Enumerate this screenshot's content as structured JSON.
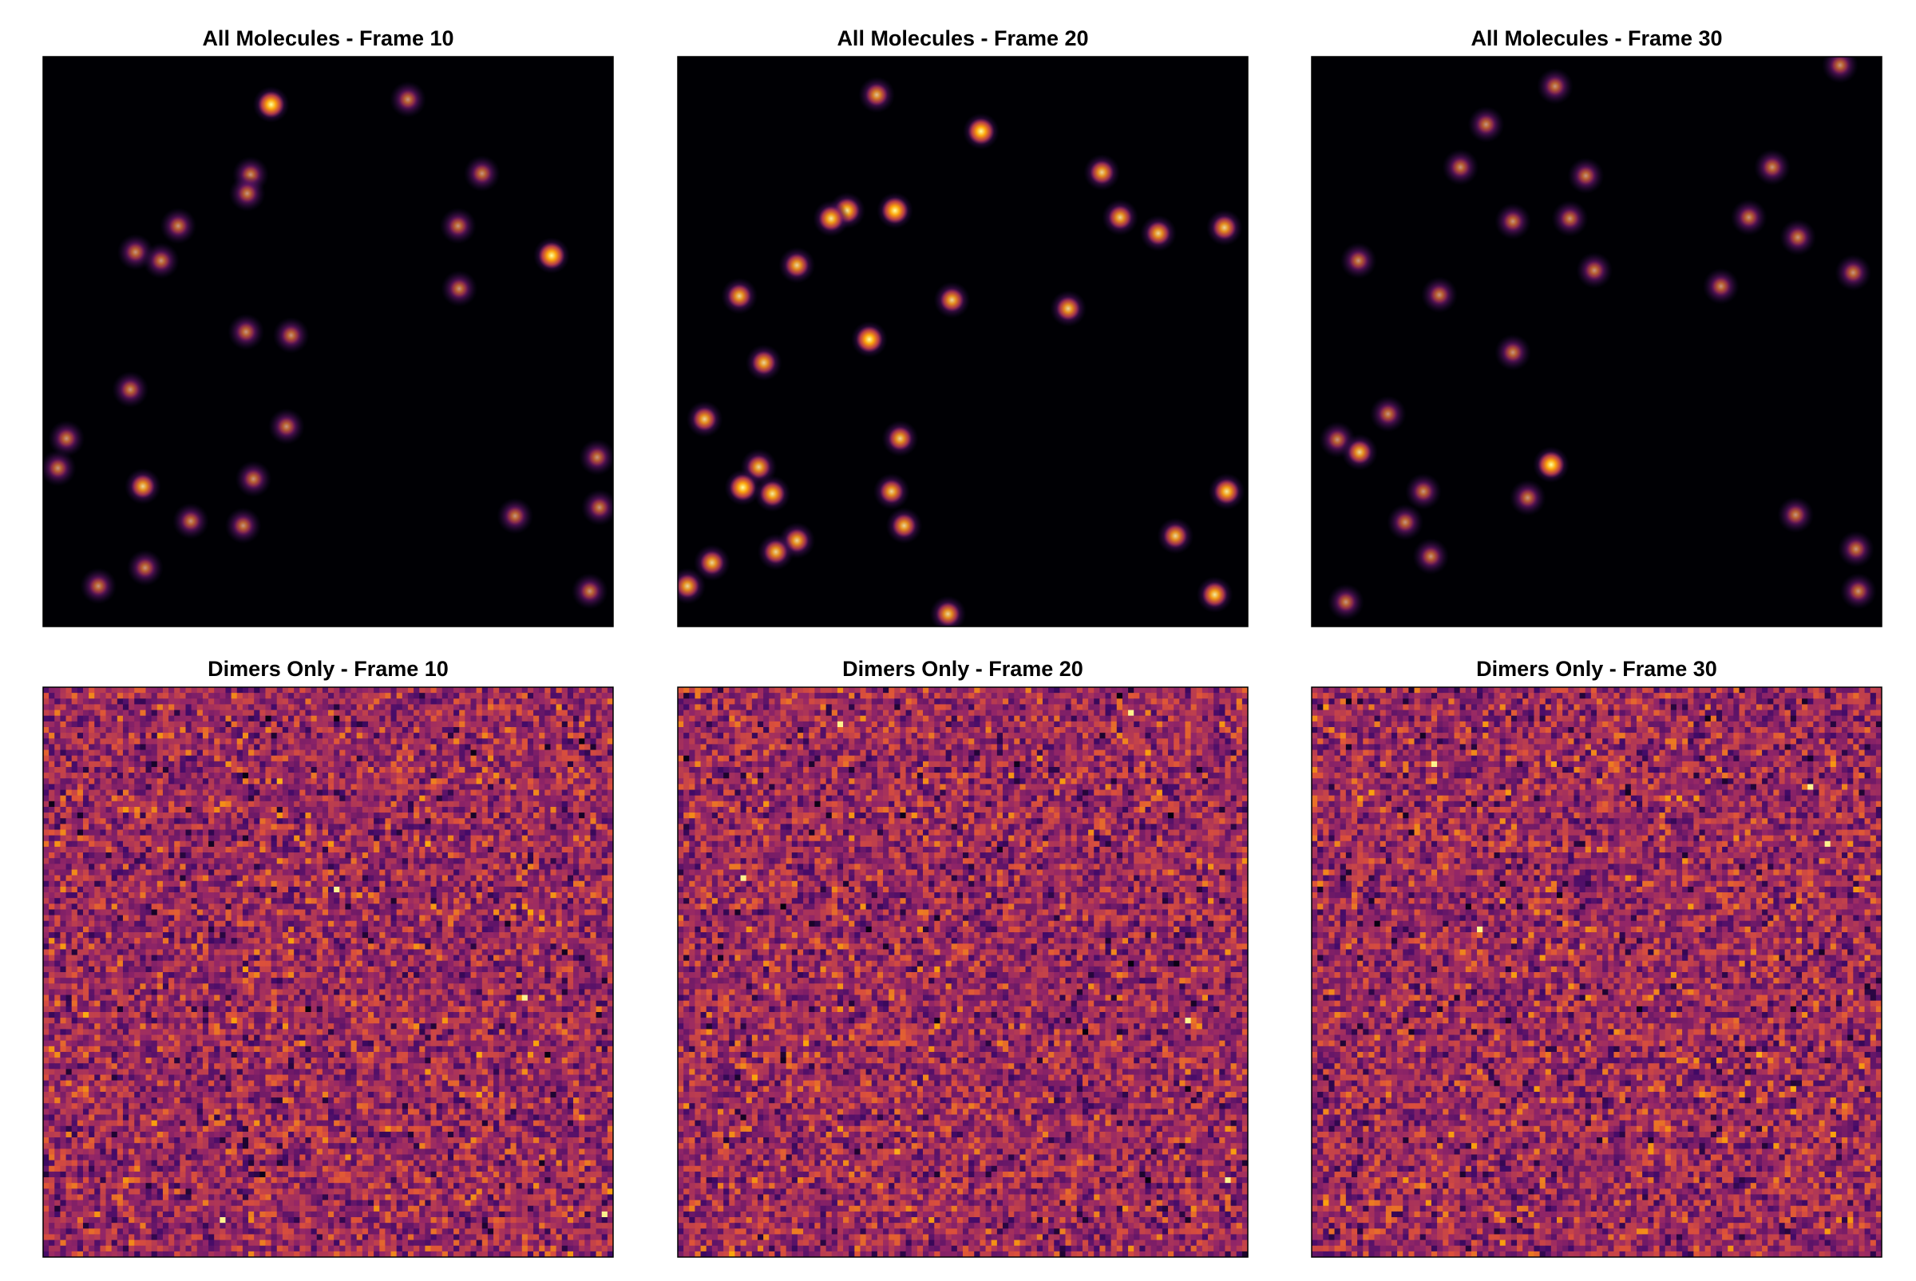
{
  "chart_data": [
    {
      "type": "spots",
      "title": "All Molecules - Frame 10",
      "xlim": [
        0,
        100
      ],
      "ylim": [
        0,
        100
      ],
      "spots": [
        {
          "x": 40,
          "y": 8.4,
          "a": 1
        },
        {
          "x": 64,
          "y": 7.5,
          "a": 0.5
        },
        {
          "x": 36.4,
          "y": 20.7,
          "a": 0.5
        },
        {
          "x": 35.8,
          "y": 24,
          "a": 0.5
        },
        {
          "x": 77,
          "y": 20.5,
          "a": 0.5
        },
        {
          "x": 23.7,
          "y": 29.7,
          "a": 0.5
        },
        {
          "x": 16.2,
          "y": 34.3,
          "a": 0.5
        },
        {
          "x": 20.7,
          "y": 35.8,
          "a": 0.5
        },
        {
          "x": 72.8,
          "y": 29.7,
          "a": 0.5
        },
        {
          "x": 89.2,
          "y": 34.9,
          "a": 1
        },
        {
          "x": 73,
          "y": 40.7,
          "a": 0.5
        },
        {
          "x": 35.6,
          "y": 48.3,
          "a": 0.5
        },
        {
          "x": 43.5,
          "y": 48.9,
          "a": 0.5
        },
        {
          "x": 15.3,
          "y": 58.4,
          "a": 0.5
        },
        {
          "x": 42.7,
          "y": 64.9,
          "a": 0.5
        },
        {
          "x": 4.1,
          "y": 67,
          "a": 0.5
        },
        {
          "x": 2.6,
          "y": 72.2,
          "a": 0.5
        },
        {
          "x": 17.5,
          "y": 75.4,
          "a": 0.8
        },
        {
          "x": 36.9,
          "y": 74.1,
          "a": 0.5
        },
        {
          "x": 97.2,
          "y": 70.3,
          "a": 0.5
        },
        {
          "x": 97.6,
          "y": 79.1,
          "a": 0.5
        },
        {
          "x": 82.8,
          "y": 80.6,
          "a": 0.5
        },
        {
          "x": 25.9,
          "y": 81.5,
          "a": 0.5
        },
        {
          "x": 35.1,
          "y": 82.3,
          "a": 0.5
        },
        {
          "x": 17.9,
          "y": 89.7,
          "a": 0.5
        },
        {
          "x": 9.7,
          "y": 92.9,
          "a": 0.5
        },
        {
          "x": 95.9,
          "y": 93.8,
          "a": 0.5
        }
      ]
    },
    {
      "type": "spots",
      "title": "All Molecules - Frame 20",
      "xlim": [
        0,
        100
      ],
      "ylim": [
        0,
        100
      ],
      "spots": [
        {
          "x": 34.9,
          "y": 6.7,
          "a": 0.7
        },
        {
          "x": 53.2,
          "y": 13.1,
          "a": 1
        },
        {
          "x": 74.4,
          "y": 20.3,
          "a": 0.8
        },
        {
          "x": 38.1,
          "y": 27,
          "a": 1
        },
        {
          "x": 29.7,
          "y": 27,
          "a": 0.9
        },
        {
          "x": 26.9,
          "y": 28.4,
          "a": 0.9
        },
        {
          "x": 77.6,
          "y": 28.2,
          "a": 0.8
        },
        {
          "x": 84.3,
          "y": 31,
          "a": 0.8
        },
        {
          "x": 95.9,
          "y": 30,
          "a": 0.8
        },
        {
          "x": 20.9,
          "y": 36.6,
          "a": 0.8
        },
        {
          "x": 10.8,
          "y": 42,
          "a": 0.8
        },
        {
          "x": 48.1,
          "y": 42.7,
          "a": 0.8
        },
        {
          "x": 68.5,
          "y": 44.2,
          "a": 0.8
        },
        {
          "x": 33.6,
          "y": 49.6,
          "a": 1
        },
        {
          "x": 15.1,
          "y": 53.7,
          "a": 0.8
        },
        {
          "x": 4.7,
          "y": 63.6,
          "a": 0.8
        },
        {
          "x": 39,
          "y": 67,
          "a": 0.8
        },
        {
          "x": 14.2,
          "y": 72,
          "a": 0.8
        },
        {
          "x": 11.4,
          "y": 75.6,
          "a": 1
        },
        {
          "x": 16.6,
          "y": 76.7,
          "a": 0.9
        },
        {
          "x": 37.5,
          "y": 76.3,
          "a": 0.8
        },
        {
          "x": 96.3,
          "y": 76.3,
          "a": 0.9
        },
        {
          "x": 39.7,
          "y": 82.3,
          "a": 0.8
        },
        {
          "x": 20.9,
          "y": 84.9,
          "a": 0.8
        },
        {
          "x": 17.2,
          "y": 86.9,
          "a": 0.8
        },
        {
          "x": 87.3,
          "y": 84.1,
          "a": 0.8
        },
        {
          "x": 6,
          "y": 88.8,
          "a": 0.8
        },
        {
          "x": 1.7,
          "y": 92.9,
          "a": 0.8
        },
        {
          "x": 94.2,
          "y": 94.4,
          "a": 0.9
        },
        {
          "x": 47.4,
          "y": 97.8,
          "a": 0.8
        }
      ]
    },
    {
      "type": "spots",
      "title": "All Molecules - Frame 30",
      "xlim": [
        0,
        100
      ],
      "ylim": [
        0,
        100
      ],
      "spots": [
        {
          "x": 42.7,
          "y": 5.2,
          "a": 0.5
        },
        {
          "x": 92.7,
          "y": 1.5,
          "a": 0.5
        },
        {
          "x": 30.6,
          "y": 11.9,
          "a": 0.5
        },
        {
          "x": 26.1,
          "y": 19.4,
          "a": 0.5
        },
        {
          "x": 48.1,
          "y": 20.9,
          "a": 0.5
        },
        {
          "x": 80.8,
          "y": 19.4,
          "a": 0.5
        },
        {
          "x": 35.3,
          "y": 28.9,
          "a": 0.5
        },
        {
          "x": 45.3,
          "y": 28.4,
          "a": 0.5
        },
        {
          "x": 76.7,
          "y": 28.2,
          "a": 0.5
        },
        {
          "x": 85.3,
          "y": 31.7,
          "a": 0.5
        },
        {
          "x": 8.2,
          "y": 35.8,
          "a": 0.5
        },
        {
          "x": 49.6,
          "y": 37.5,
          "a": 0.5
        },
        {
          "x": 95,
          "y": 37.9,
          "a": 0.5
        },
        {
          "x": 71.8,
          "y": 40.3,
          "a": 0.5
        },
        {
          "x": 22.4,
          "y": 41.8,
          "a": 0.5
        },
        {
          "x": 35.3,
          "y": 51.9,
          "a": 0.5
        },
        {
          "x": 13.4,
          "y": 62.7,
          "a": 0.5
        },
        {
          "x": 4.5,
          "y": 67.2,
          "a": 0.5
        },
        {
          "x": 8.4,
          "y": 69.4,
          "a": 0.8
        },
        {
          "x": 42,
          "y": 71.6,
          "a": 1
        },
        {
          "x": 19.6,
          "y": 76.3,
          "a": 0.5
        },
        {
          "x": 37.9,
          "y": 77.4,
          "a": 0.5
        },
        {
          "x": 16.4,
          "y": 81.7,
          "a": 0.5
        },
        {
          "x": 84.9,
          "y": 80.4,
          "a": 0.5
        },
        {
          "x": 95.5,
          "y": 86.4,
          "a": 0.5
        },
        {
          "x": 20.9,
          "y": 87.7,
          "a": 0.5
        },
        {
          "x": 95.9,
          "y": 93.8,
          "a": 0.5
        },
        {
          "x": 6,
          "y": 95.7,
          "a": 0.5
        }
      ]
    },
    {
      "type": "noise",
      "title": "Dimers Only - Frame 10"
    },
    {
      "type": "noise",
      "title": "Dimers Only - Frame 20"
    },
    {
      "type": "noise",
      "title": "Dimers Only - Frame 30"
    }
  ]
}
